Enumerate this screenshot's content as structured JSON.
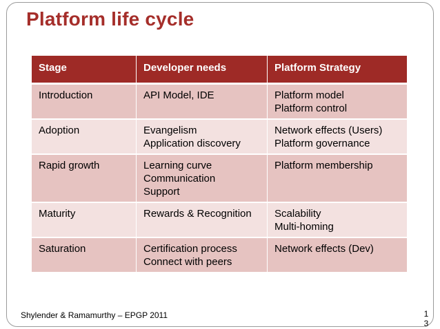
{
  "slide": {
    "title": "Platform life cycle",
    "footer": "Shylender & Ramamurthy – EPGP 2011",
    "page_number": "13"
  },
  "table": {
    "headers": [
      "Stage",
      "Developer needs",
      "Platform Strategy"
    ],
    "rows": [
      {
        "stage": "Introduction",
        "needs": [
          "API Model, IDE"
        ],
        "strategy": [
          "Platform model",
          "Platform control"
        ]
      },
      {
        "stage": "Adoption",
        "needs": [
          "Evangelism",
          "Application discovery"
        ],
        "strategy": [
          "Network effects (Users)",
          "Platform governance"
        ]
      },
      {
        "stage": "Rapid growth",
        "needs": [
          "Learning curve",
          "Communication",
          "Support"
        ],
        "strategy": [
          "Platform membership"
        ]
      },
      {
        "stage": "Maturity",
        "needs": [
          "Rewards & Recognition"
        ],
        "strategy": [
          "Scalability",
          "Multi-homing"
        ]
      },
      {
        "stage": "Saturation",
        "needs": [
          "Certification process",
          "Connect with peers"
        ],
        "strategy": [
          "Network effects (Dev)"
        ]
      }
    ]
  },
  "colors": {
    "title": "#a52e2a",
    "header_bg": "#9e2a26",
    "row_dark": "#e6c3c1",
    "row_light": "#f3e1e0"
  }
}
